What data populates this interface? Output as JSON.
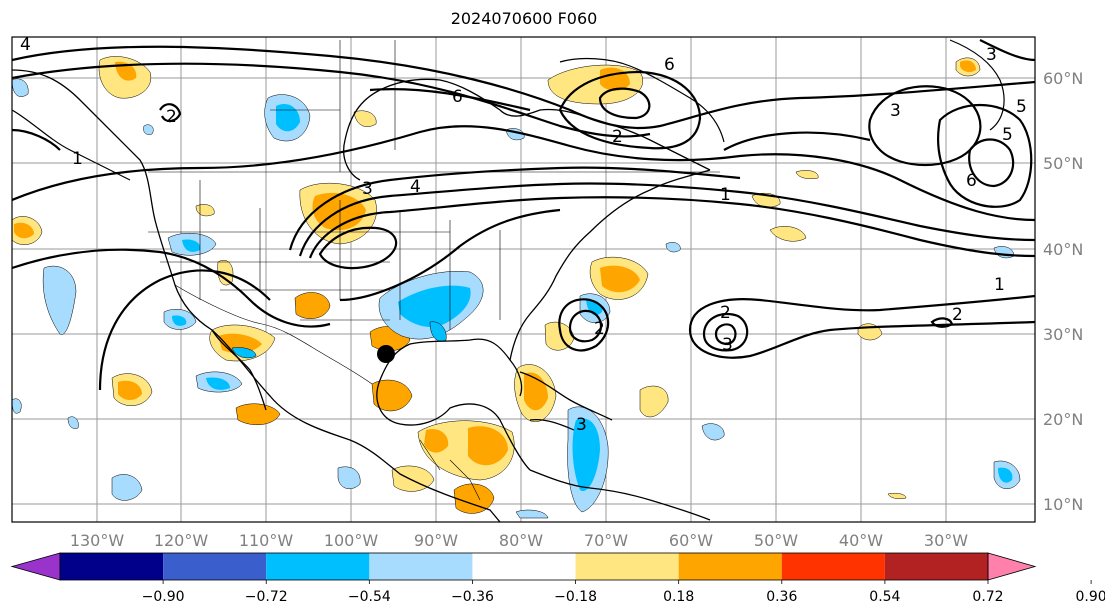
{
  "title": "2024070600 F060",
  "lon_labels": [
    "130°W",
    "120°W",
    "110°W",
    "100°W",
    "90°W",
    "80°W",
    "70°W",
    "60°W",
    "50°W",
    "40°W",
    "30°W"
  ],
  "lat_labels": [
    "60°N",
    "50°N",
    "40°N",
    "30°N",
    "20°N",
    "10°N"
  ],
  "colorbar": {
    "ticks": [
      "−0.90",
      "−0.72",
      "−0.54",
      "−0.36",
      "−0.18",
      "0.18",
      "0.36",
      "0.54",
      "0.72",
      "0.90"
    ],
    "colors": [
      "#9933cc",
      "#00008b",
      "#3a5fcd",
      "#00bfff",
      "#a8dcff",
      "#ffffff",
      "#ffe680",
      "#ffa500",
      "#ff3300",
      "#b22222",
      "#ff80aa"
    ]
  },
  "contour_labels": [
    "1",
    "2",
    "3",
    "4",
    "5",
    "6"
  ],
  "marker": "storm-center-dot"
}
